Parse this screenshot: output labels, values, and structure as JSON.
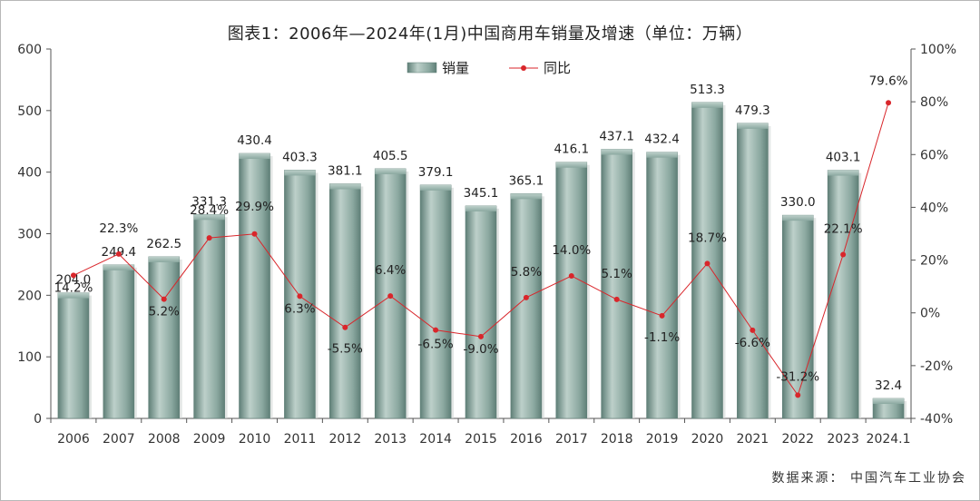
{
  "title": "图表1：2006年—2024年(1月)中国商用车销量及增速（单位：万辆）",
  "source": "数据来源：  中国汽车工业协会",
  "colors": {
    "bar": "#8ba8a0",
    "bar_dark": "#5f7f77",
    "bar_light": "#bdd0ca",
    "line": "#d9262b",
    "axis": "#555555"
  },
  "chart_data": {
    "type": "bar",
    "categories": [
      "2006",
      "2007",
      "2008",
      "2009",
      "2010",
      "2011",
      "2012",
      "2013",
      "2014",
      "2015",
      "2016",
      "2017",
      "2018",
      "2019",
      "2020",
      "2021",
      "2022",
      "2023",
      "2024.1"
    ],
    "series": [
      {
        "name": "销量",
        "type": "bar",
        "axis": "left",
        "values": [
          204.0,
          249.4,
          262.5,
          331.3,
          430.4,
          403.3,
          381.1,
          405.5,
          379.1,
          345.1,
          365.1,
          416.1,
          437.1,
          432.4,
          513.3,
          479.3,
          330.0,
          403.1,
          32.4
        ],
        "labels": [
          "204.0",
          "249.4",
          "262.5",
          "331.3",
          "430.4",
          "403.3",
          "381.1",
          "405.5",
          "379.1",
          "345.1",
          "365.1",
          "416.1",
          "437.1",
          "432.4",
          "513.3",
          "479.3",
          "330.0",
          "403.1",
          "32.4"
        ]
      },
      {
        "name": "同比",
        "type": "line",
        "axis": "right",
        "values": [
          14.2,
          22.3,
          5.2,
          28.4,
          29.9,
          6.3,
          -5.5,
          6.4,
          -6.5,
          -9.0,
          5.8,
          14.0,
          5.1,
          -1.1,
          18.7,
          -6.6,
          -31.2,
          22.1,
          79.6
        ],
        "labels": [
          "14.2%",
          "22.3%",
          "5.2%",
          "28.4%",
          "29.9%",
          "6.3%",
          "-5.5%",
          "6.4%",
          "-6.5%",
          "-9.0%",
          "5.8%",
          "14.0%",
          "5.1%",
          "-1.1%",
          "18.7%",
          "-6.6%",
          "-31.2%",
          "22.1%",
          "79.6%"
        ]
      }
    ],
    "y_left": {
      "min": 0,
      "max": 600,
      "ticks": [
        "0",
        "100",
        "200",
        "300",
        "400",
        "500",
        "600"
      ]
    },
    "y_right": {
      "min": -40,
      "max": 100,
      "ticks": [
        "-40%",
        "-20%",
        "0%",
        "20%",
        "40%",
        "60%",
        "80%",
        "100%"
      ]
    },
    "legend": {
      "position": "top-center",
      "items": [
        "销量",
        "同比"
      ]
    },
    "grid": false
  }
}
